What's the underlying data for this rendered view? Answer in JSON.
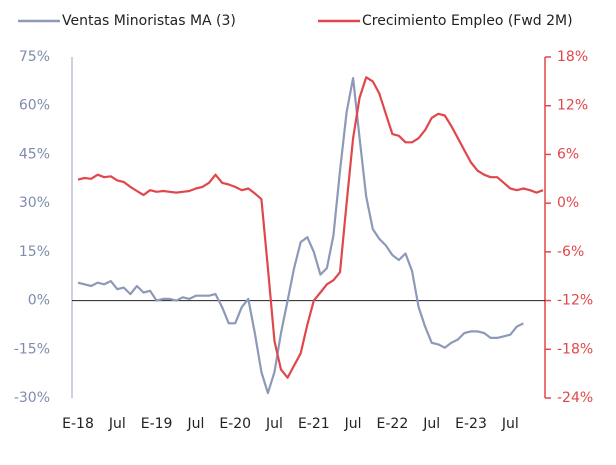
{
  "chart_data": {
    "type": "line",
    "categories": [
      "E-18",
      null,
      null,
      null,
      null,
      null,
      "Jul",
      null,
      null,
      null,
      null,
      null,
      "E-19",
      null,
      null,
      null,
      null,
      null,
      "Jul",
      null,
      null,
      null,
      null,
      null,
      "E-20",
      null,
      null,
      null,
      null,
      null,
      "Jul",
      null,
      null,
      null,
      null,
      null,
      "E-21",
      null,
      null,
      null,
      null,
      null,
      "Jul",
      null,
      null,
      null,
      null,
      null,
      "E-22",
      null,
      null,
      null,
      null,
      null,
      "Jul",
      null,
      null,
      null,
      null,
      null,
      "E-23",
      null,
      null,
      null,
      null,
      null,
      "Jul",
      null,
      null,
      null,
      null,
      null
    ],
    "series": [
      {
        "name": "Ventas Minoristas MA (3)",
        "color": "#8d99b8",
        "values": [
          5.5,
          5,
          4.5,
          5.5,
          5,
          6,
          3.5,
          4,
          2,
          4.5,
          2.5,
          3,
          0,
          0.5,
          0.5,
          0,
          1,
          0.5,
          1.5,
          1.5,
          1.5,
          2,
          -2,
          -7,
          -7,
          -2,
          0.5,
          -10,
          -22,
          -28.5,
          -22,
          -10,
          0,
          10,
          18,
          19.5,
          15,
          8,
          10,
          20,
          40,
          58,
          68.5,
          50,
          32,
          22,
          19,
          17,
          14,
          12.5,
          14.5,
          9,
          -2,
          -8,
          -13,
          -13.5,
          -14.5,
          -13,
          -12,
          -10,
          -9.5,
          -9.5,
          -10,
          -11.5,
          -11.5,
          -11,
          -10.5,
          -8,
          -7,
          null,
          null,
          null
        ]
      },
      {
        "name": "Crecimiento Empleo (Fwd 2M)",
        "color": "#e0474c",
        "axis": "y2",
        "values": [
          2.9,
          3.1,
          3.0,
          3.5,
          3.2,
          3.3,
          2.8,
          2.6,
          2.0,
          1.5,
          1.0,
          1.6,
          1.4,
          1.5,
          1.4,
          1.3,
          1.4,
          1.5,
          1.8,
          2.0,
          2.5,
          3.5,
          2.5,
          2.3,
          2.0,
          1.6,
          1.8,
          1.2,
          0.5,
          -8,
          -17,
          -20.5,
          -21.5,
          -20,
          -18.5,
          -15,
          -12,
          -11,
          -10,
          -9.5,
          -8.5,
          0,
          8,
          13,
          15.5,
          15,
          13.5,
          11,
          8.5,
          8.3,
          7.5,
          7.5,
          8,
          9,
          10.5,
          11,
          10.8,
          9.5,
          8,
          6.5,
          5,
          4,
          3.5,
          3.2,
          3.2,
          2.5,
          1.8,
          1.6,
          1.8,
          1.6,
          1.3,
          1.6
        ]
      }
    ],
    "ylim": [
      -30,
      75
    ],
    "yticks": [
      {
        "value": -30,
        "label": "-30%"
      },
      {
        "value": -15,
        "label": "-15%"
      },
      {
        "value": 0,
        "label": "0%"
      },
      {
        "value": 15,
        "label": "15%"
      },
      {
        "value": 30,
        "label": "30%"
      },
      {
        "value": 45,
        "label": "45%"
      },
      {
        "value": 60,
        "label": "60%"
      },
      {
        "value": 75,
        "label": "75%"
      }
    ],
    "y2lim": [
      -24,
      18
    ],
    "y2ticks": [
      {
        "value": -24,
        "label": "-24%"
      },
      {
        "value": -18,
        "label": "-18%"
      },
      {
        "value": -12,
        "label": "-12%"
      },
      {
        "value": -6,
        "label": "-6%"
      },
      {
        "value": 0,
        "label": "0%"
      },
      {
        "value": 6,
        "label": "6%"
      },
      {
        "value": 12,
        "label": "12%"
      },
      {
        "value": 18,
        "label": "18%"
      }
    ],
    "legend": "top"
  }
}
